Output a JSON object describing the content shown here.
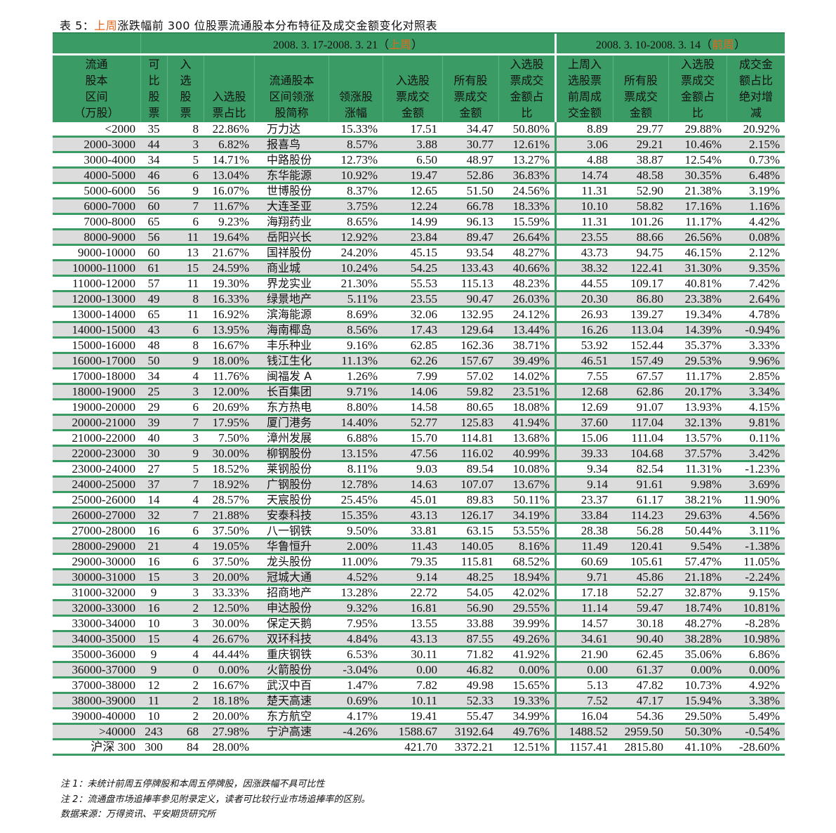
{
  "title": {
    "prefix": "表 5：",
    "highlight": "上周",
    "suffix": "涨跌幅前 300 位股票流通股本分布特征及成交金额变化对照表"
  },
  "colors": {
    "header_green": "#3a9b65",
    "highlight_orange": "#e8661c",
    "alt_row_gray": "#dcdcdc"
  },
  "table": {
    "groups": {
      "last_week": {
        "dates": "2008. 3. 17-2008. 3. 21（",
        "tag": "上周",
        "close": "）"
      },
      "prev_week": {
        "dates": "2008. 3. 10-2008. 3. 14（",
        "tag": "前周",
        "close": "）"
      }
    },
    "headers": [
      "流通\n股本\n区间\n（万股）",
      "可\n比\n股\n票",
      "入\n选\n股\n票",
      "入选股\n票占比",
      "流通股本\n区间领涨\n股简称",
      "领涨股\n涨幅",
      "入选股\n票成交\n金额",
      "所有股\n票成交\n金额",
      "入选股\n票成交\n金额占\n比",
      "上周入\n选股票\n前周成\n交金额",
      "所有股\n票成交\n金额",
      "入选股\n票成交\n金额占\n比",
      "成交金\n额占比\n绝对增\n减"
    ],
    "rows": [
      [
        "<2000",
        "35",
        "8",
        "22.86%",
        "万力达",
        "15.33%",
        "17.51",
        "34.47",
        "50.80%",
        "8.89",
        "29.77",
        "29.88%",
        "20.92%"
      ],
      [
        "2000-3000",
        "44",
        "3",
        "6.82%",
        "报喜鸟",
        "8.57%",
        "3.88",
        "30.77",
        "12.61%",
        "3.06",
        "29.21",
        "10.46%",
        "2.15%"
      ],
      [
        "3000-4000",
        "34",
        "5",
        "14.71%",
        "中路股份",
        "12.73%",
        "6.50",
        "48.97",
        "13.27%",
        "4.88",
        "38.87",
        "12.54%",
        "0.73%"
      ],
      [
        "4000-5000",
        "46",
        "6",
        "13.04%",
        "东华能源",
        "10.92%",
        "19.47",
        "52.86",
        "36.83%",
        "14.74",
        "48.58",
        "30.35%",
        "6.48%"
      ],
      [
        "5000-6000",
        "56",
        "9",
        "16.07%",
        "世博股份",
        "8.37%",
        "12.65",
        "51.50",
        "24.56%",
        "11.31",
        "52.90",
        "21.38%",
        "3.19%"
      ],
      [
        "6000-7000",
        "60",
        "7",
        "11.67%",
        "大连圣亚",
        "3.75%",
        "12.24",
        "66.78",
        "18.33%",
        "10.10",
        "58.82",
        "17.16%",
        "1.16%"
      ],
      [
        "7000-8000",
        "65",
        "6",
        "9.23%",
        "海翔药业",
        "8.65%",
        "14.99",
        "96.13",
        "15.59%",
        "11.31",
        "101.26",
        "11.17%",
        "4.42%"
      ],
      [
        "8000-9000",
        "56",
        "11",
        "19.64%",
        "岳阳兴长",
        "12.92%",
        "23.84",
        "89.47",
        "26.64%",
        "23.55",
        "88.66",
        "26.56%",
        "0.08%"
      ],
      [
        "9000-10000",
        "60",
        "13",
        "21.67%",
        "国祥股份",
        "24.20%",
        "45.15",
        "93.54",
        "48.27%",
        "43.73",
        "94.75",
        "46.15%",
        "2.12%"
      ],
      [
        "10000-11000",
        "61",
        "15",
        "24.59%",
        "商业城",
        "10.24%",
        "54.25",
        "133.43",
        "40.66%",
        "38.32",
        "122.41",
        "31.30%",
        "9.35%"
      ],
      [
        "11000-12000",
        "57",
        "11",
        "19.30%",
        "界龙实业",
        "21.30%",
        "55.53",
        "115.13",
        "48.23%",
        "44.55",
        "109.17",
        "40.81%",
        "7.42%"
      ],
      [
        "12000-13000",
        "49",
        "8",
        "16.33%",
        "绿景地产",
        "5.11%",
        "23.55",
        "90.47",
        "26.03%",
        "20.30",
        "86.80",
        "23.38%",
        "2.64%"
      ],
      [
        "13000-14000",
        "65",
        "11",
        "16.92%",
        "滨海能源",
        "8.69%",
        "32.06",
        "132.95",
        "24.12%",
        "26.93",
        "139.27",
        "19.34%",
        "4.78%"
      ],
      [
        "14000-15000",
        "43",
        "6",
        "13.95%",
        "海南椰岛",
        "8.56%",
        "17.43",
        "129.64",
        "13.44%",
        "16.26",
        "113.04",
        "14.39%",
        "-0.94%"
      ],
      [
        "15000-16000",
        "48",
        "8",
        "16.67%",
        "丰乐种业",
        "9.16%",
        "62.85",
        "162.36",
        "38.71%",
        "53.92",
        "152.44",
        "35.37%",
        "3.33%"
      ],
      [
        "16000-17000",
        "50",
        "9",
        "18.00%",
        "钱江生化",
        "11.13%",
        "62.26",
        "157.67",
        "39.49%",
        "46.51",
        "157.49",
        "29.53%",
        "9.96%"
      ],
      [
        "17000-18000",
        "34",
        "4",
        "11.76%",
        "闽福发 A",
        "1.26%",
        "7.99",
        "57.02",
        "14.02%",
        "7.55",
        "67.57",
        "11.17%",
        "2.85%"
      ],
      [
        "18000-19000",
        "25",
        "3",
        "12.00%",
        "长百集团",
        "9.71%",
        "14.06",
        "59.82",
        "23.51%",
        "12.68",
        "62.86",
        "20.17%",
        "3.34%"
      ],
      [
        "19000-20000",
        "29",
        "6",
        "20.69%",
        "东方热电",
        "8.80%",
        "14.58",
        "80.65",
        "18.08%",
        "12.69",
        "91.07",
        "13.93%",
        "4.15%"
      ],
      [
        "20000-21000",
        "39",
        "7",
        "17.95%",
        "厦门港务",
        "14.40%",
        "52.77",
        "125.83",
        "41.94%",
        "37.60",
        "117.04",
        "32.13%",
        "9.81%"
      ],
      [
        "21000-22000",
        "40",
        "3",
        "7.50%",
        "漳州发展",
        "6.88%",
        "15.70",
        "114.81",
        "13.68%",
        "15.06",
        "111.04",
        "13.57%",
        "0.11%"
      ],
      [
        "22000-23000",
        "30",
        "9",
        "30.00%",
        "柳钢股份",
        "13.15%",
        "47.56",
        "116.02",
        "40.99%",
        "39.33",
        "104.68",
        "37.57%",
        "3.42%"
      ],
      [
        "23000-24000",
        "27",
        "5",
        "18.52%",
        "莱钢股份",
        "8.11%",
        "9.03",
        "89.54",
        "10.08%",
        "9.34",
        "82.54",
        "11.31%",
        "-1.23%"
      ],
      [
        "24000-25000",
        "37",
        "7",
        "18.92%",
        "广钢股份",
        "12.78%",
        "14.63",
        "107.07",
        "13.67%",
        "9.14",
        "91.61",
        "9.98%",
        "3.69%"
      ],
      [
        "25000-26000",
        "14",
        "4",
        "28.57%",
        "天宸股份",
        "25.45%",
        "45.01",
        "89.83",
        "50.11%",
        "23.37",
        "61.17",
        "38.21%",
        "11.90%"
      ],
      [
        "26000-27000",
        "32",
        "7",
        "21.88%",
        "安泰科技",
        "15.35%",
        "43.13",
        "126.17",
        "34.19%",
        "33.84",
        "114.23",
        "29.63%",
        "4.56%"
      ],
      [
        "27000-28000",
        "16",
        "6",
        "37.50%",
        "八一钢铁",
        "9.50%",
        "33.81",
        "63.15",
        "53.55%",
        "28.38",
        "56.28",
        "50.44%",
        "3.11%"
      ],
      [
        "28000-29000",
        "21",
        "4",
        "19.05%",
        "华鲁恒升",
        "2.00%",
        "11.43",
        "140.05",
        "8.16%",
        "11.49",
        "120.41",
        "9.54%",
        "-1.38%"
      ],
      [
        "29000-30000",
        "16",
        "6",
        "37.50%",
        "龙头股份",
        "11.00%",
        "79.35",
        "115.81",
        "68.52%",
        "60.69",
        "105.61",
        "57.47%",
        "11.05%"
      ],
      [
        "30000-31000",
        "15",
        "3",
        "20.00%",
        "冠城大通",
        "4.52%",
        "9.14",
        "48.25",
        "18.94%",
        "9.71",
        "45.86",
        "21.18%",
        "-2.24%"
      ],
      [
        "31000-32000",
        "9",
        "3",
        "33.33%",
        "招商地产",
        "13.28%",
        "22.72",
        "54.05",
        "42.02%",
        "17.18",
        "52.27",
        "32.87%",
        "9.15%"
      ],
      [
        "32000-33000",
        "16",
        "2",
        "12.50%",
        "申达股份",
        "9.32%",
        "16.81",
        "56.90",
        "29.55%",
        "11.14",
        "59.47",
        "18.74%",
        "10.81%"
      ],
      [
        "33000-34000",
        "10",
        "3",
        "30.00%",
        "保定天鹅",
        "7.95%",
        "13.55",
        "33.88",
        "39.99%",
        "14.57",
        "30.18",
        "48.27%",
        "-8.28%"
      ],
      [
        "34000-35000",
        "15",
        "4",
        "26.67%",
        "双环科技",
        "4.84%",
        "43.13",
        "87.55",
        "49.26%",
        "34.61",
        "90.40",
        "38.28%",
        "10.98%"
      ],
      [
        "35000-36000",
        "9",
        "4",
        "44.44%",
        "重庆钢铁",
        "6.53%",
        "30.11",
        "71.82",
        "41.92%",
        "21.90",
        "62.45",
        "35.06%",
        "6.86%"
      ],
      [
        "36000-37000",
        "9",
        "0",
        "0.00%",
        "火箭股份",
        "-3.04%",
        "0.00",
        "46.82",
        "0.00%",
        "0.00",
        "61.37",
        "0.00%",
        "0.00%"
      ],
      [
        "37000-38000",
        "12",
        "2",
        "16.67%",
        "武汉中百",
        "1.47%",
        "7.82",
        "49.98",
        "15.65%",
        "5.13",
        "47.82",
        "10.73%",
        "4.92%"
      ],
      [
        "38000-39000",
        "11",
        "2",
        "18.18%",
        "楚天高速",
        "0.69%",
        "10.11",
        "52.33",
        "19.33%",
        "7.52",
        "47.17",
        "15.94%",
        "3.38%"
      ],
      [
        "39000-40000",
        "10",
        "2",
        "20.00%",
        "东方航空",
        "4.17%",
        "19.41",
        "55.47",
        "34.99%",
        "16.04",
        "54.36",
        "29.50%",
        "5.49%"
      ],
      [
        ">40000",
        "243",
        "68",
        "27.98%",
        "宁沪高速",
        "-4.26%",
        "1588.67",
        "3192.64",
        "49.76%",
        "1488.52",
        "2959.50",
        "50.30%",
        "-0.54%"
      ],
      [
        "沪深 300",
        "300",
        "84",
        "28.00%",
        "",
        "",
        "421.70",
        "3372.21",
        "12.51%",
        "1157.41",
        "2815.80",
        "41.10%",
        "-28.60%"
      ]
    ]
  },
  "notes": [
    "注 1：未统计前周五停牌股和本周五停牌股，因涨跌幅不具可比性",
    "注 2：流通盘市场追捧率参见附录定义，读者可比较行业市场追捧率的区别。",
    "数据来源：万得资讯、平安期货研究所"
  ]
}
